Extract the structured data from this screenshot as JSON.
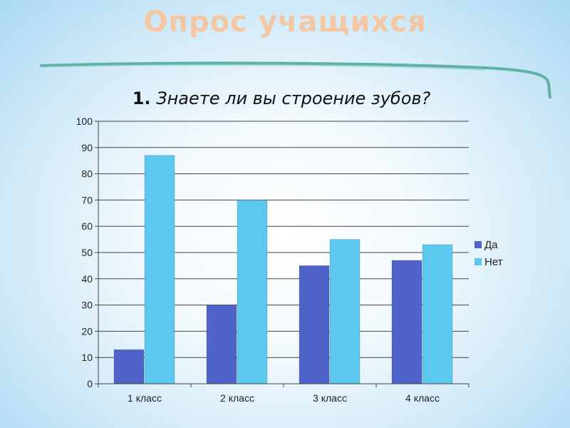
{
  "slide": {
    "title": "Опрос учащихся"
  },
  "colors": {
    "title": "#f5c6a2",
    "underline": "#5fb3a6",
    "series_da": "#4f63c8",
    "series_net": "#5bc8ee",
    "grid": "#444444"
  },
  "chart_data": {
    "type": "bar",
    "title_number": "1.",
    "title": "Знаете ли вы строение зубов?",
    "categories": [
      "1 класс",
      "2 класс",
      "3 класс",
      "4 класс"
    ],
    "series": [
      {
        "name": "Да",
        "values": [
          13,
          30,
          45,
          47
        ]
      },
      {
        "name": "Нет",
        "values": [
          87,
          70,
          55,
          53
        ]
      }
    ],
    "ylim": [
      0,
      100
    ],
    "yticks": [
      "0",
      "10",
      "20",
      "30",
      "40",
      "50",
      "60",
      "70",
      "80",
      "90",
      "100"
    ],
    "grid": true,
    "legend_position": "right"
  }
}
